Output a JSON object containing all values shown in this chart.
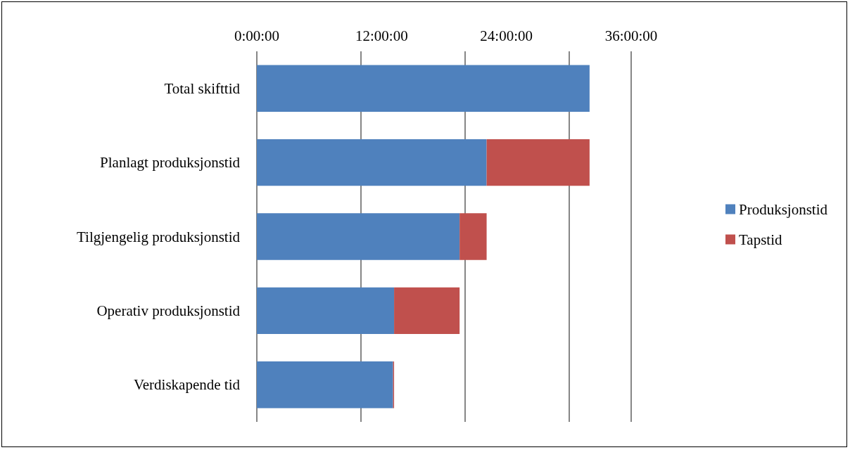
{
  "chart_data": {
    "type": "bar",
    "orientation": "horizontal",
    "stacked": true,
    "categories": [
      "Total skifttid",
      "Planlagt produksjonstid",
      "Tilgjengelig produksjonstid",
      "Operativ produksjonstid",
      "Verdiskapende tid"
    ],
    "series": [
      {
        "name": "Produksjonstid",
        "color": "#4f81bd",
        "values": [
          32,
          22.1,
          19.5,
          13.2,
          13.1
        ]
      },
      {
        "name": "Tapstid",
        "color": "#c0504d",
        "values": [
          null,
          9.9,
          2.6,
          6.3,
          0.1
        ]
      }
    ],
    "xlim": [
      0,
      36
    ],
    "xticks": [
      {
        "value": 0,
        "label": "0:00:00"
      },
      {
        "value": 12,
        "label": "12:00:00"
      },
      {
        "value": 24,
        "label": "24:00:00"
      },
      {
        "value": 36,
        "label": "36:00:00"
      }
    ],
    "grid": "x",
    "legend": "right"
  }
}
